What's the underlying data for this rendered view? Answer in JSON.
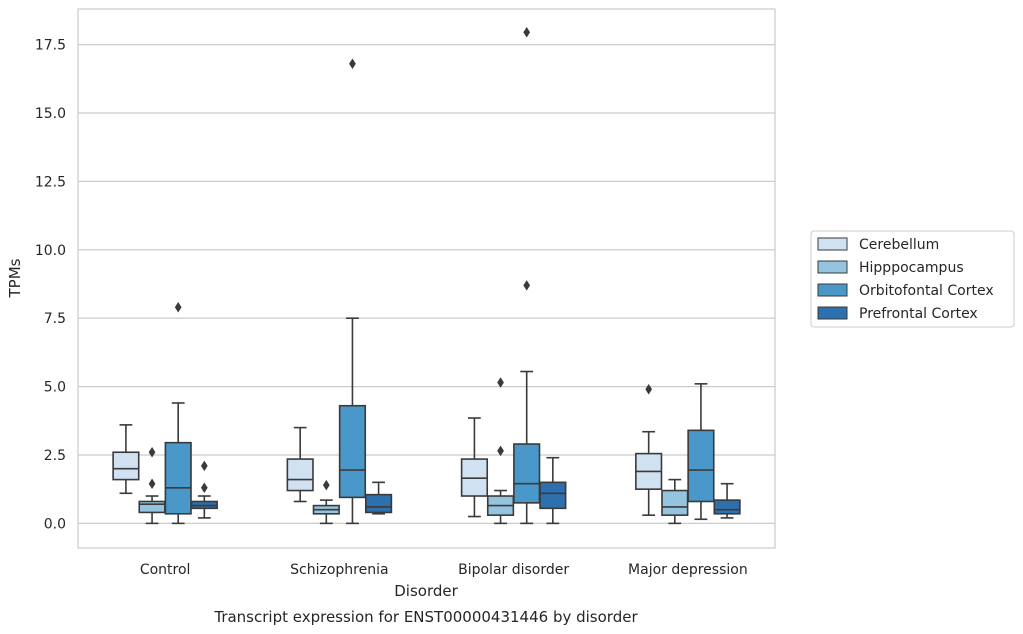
{
  "chart_data": {
    "type": "boxplot",
    "title": "",
    "caption": "Transcript expression for ENST00000431446 by disorder",
    "xlabel": "Disorder",
    "ylabel": "TPMs",
    "ylim": [
      -0.9,
      18.8
    ],
    "yticks": [
      "0.0",
      "2.5",
      "5.0",
      "7.5",
      "10.0",
      "12.5",
      "15.0",
      "17.5"
    ],
    "ytick_values": [
      0,
      2.5,
      5.0,
      7.5,
      10.0,
      12.5,
      15.0,
      17.5
    ],
    "grid": "horizontal",
    "legend_position": "right",
    "categories": [
      "Control",
      "Schizophrenia",
      "Bipolar disorder",
      "Major depression"
    ],
    "series": [
      {
        "name": "Cerebellum",
        "color": "#d0e1f2",
        "boxes": [
          {
            "whislo": 1.1,
            "q1": 1.6,
            "med": 2.0,
            "q3": 2.6,
            "whishi": 3.6,
            "fliers": []
          },
          {
            "whislo": 0.8,
            "q1": 1.2,
            "med": 1.6,
            "q3": 2.35,
            "whishi": 3.5,
            "fliers": []
          },
          {
            "whislo": 0.25,
            "q1": 1.0,
            "med": 1.65,
            "q3": 2.35,
            "whishi": 3.85,
            "fliers": []
          },
          {
            "whislo": 0.3,
            "q1": 1.25,
            "med": 1.9,
            "q3": 2.55,
            "whishi": 3.35,
            "fliers": [
              4.9
            ]
          }
        ]
      },
      {
        "name": "Hipppocampus",
        "color": "#94c4df",
        "boxes": [
          {
            "whislo": 0.0,
            "q1": 0.4,
            "med": 0.7,
            "q3": 0.8,
            "whishi": 1.0,
            "fliers": [
              1.45,
              2.6
            ]
          },
          {
            "whislo": 0.0,
            "q1": 0.35,
            "med": 0.5,
            "q3": 0.65,
            "whishi": 0.85,
            "fliers": [
              1.4
            ]
          },
          {
            "whislo": 0.0,
            "q1": 0.3,
            "med": 0.65,
            "q3": 1.0,
            "whishi": 1.2,
            "fliers": [
              2.65,
              5.15
            ]
          },
          {
            "whislo": 0.0,
            "q1": 0.3,
            "med": 0.6,
            "q3": 1.2,
            "whishi": 1.6,
            "fliers": []
          }
        ]
      },
      {
        "name": "Orbitofontal Cortex",
        "color": "#4a98c9",
        "boxes": [
          {
            "whislo": 0.0,
            "q1": 0.35,
            "med": 1.3,
            "q3": 2.95,
            "whishi": 4.4,
            "fliers": [
              7.9
            ]
          },
          {
            "whislo": 0.0,
            "q1": 0.95,
            "med": 1.95,
            "q3": 4.3,
            "whishi": 7.5,
            "fliers": [
              16.8
            ]
          },
          {
            "whislo": 0.0,
            "q1": 0.75,
            "med": 1.45,
            "q3": 2.9,
            "whishi": 5.55,
            "fliers": [
              8.7,
              17.95
            ]
          },
          {
            "whislo": 0.15,
            "q1": 0.8,
            "med": 1.95,
            "q3": 3.4,
            "whishi": 5.1,
            "fliers": []
          }
        ]
      },
      {
        "name": "Prefrontal Cortex",
        "color": "#2e6fad",
        "boxes": [
          {
            "whislo": 0.2,
            "q1": 0.55,
            "med": 0.65,
            "q3": 0.8,
            "whishi": 1.0,
            "fliers": [
              1.3,
              2.1
            ]
          },
          {
            "whislo": 0.35,
            "q1": 0.4,
            "med": 0.6,
            "q3": 1.05,
            "whishi": 1.5,
            "fliers": []
          },
          {
            "whislo": 0.0,
            "q1": 0.55,
            "med": 1.1,
            "q3": 1.5,
            "whishi": 2.4,
            "fliers": []
          },
          {
            "whislo": 0.2,
            "q1": 0.35,
            "med": 0.5,
            "q3": 0.85,
            "whishi": 1.45,
            "fliers": []
          }
        ]
      }
    ]
  }
}
